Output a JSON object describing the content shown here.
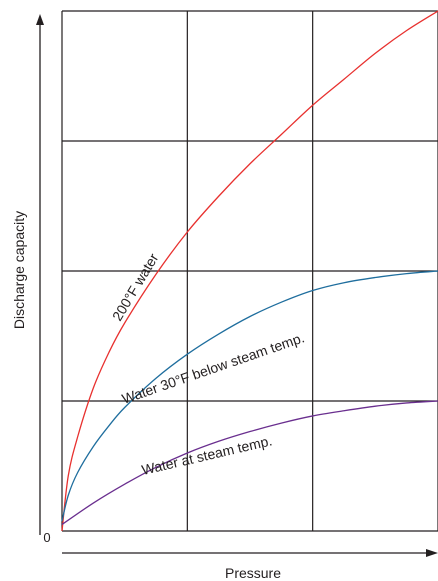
{
  "chart_data": {
    "type": "line",
    "xlabel": "Pressure",
    "ylabel": "Discharge capacity",
    "origin_label": "0",
    "xlim": [
      0,
      6
    ],
    "ylim": [
      0,
      8
    ],
    "grid": true,
    "legend": "none",
    "series": [
      {
        "name": "200°F water",
        "color": "#e8312f",
        "x": [
          0,
          0.1,
          0.25,
          0.5,
          0.75,
          1.0,
          1.5,
          2.0,
          2.5,
          3.0,
          3.5,
          4.0,
          4.5,
          5.0,
          5.5,
          6.0
        ],
        "y": [
          0,
          0.85,
          1.45,
          2.2,
          2.75,
          3.2,
          3.95,
          4.6,
          5.15,
          5.65,
          6.1,
          6.55,
          6.95,
          7.35,
          7.7,
          8.0
        ]
      },
      {
        "name": "Water 30°F below steam temp.",
        "color": "#1f6e9e",
        "x": [
          0,
          0.1,
          0.25,
          0.5,
          0.75,
          1.0,
          1.5,
          2.0,
          2.5,
          3.0,
          3.5,
          4.0,
          4.5,
          5.0,
          5.5,
          6.0
        ],
        "y": [
          0.15,
          0.55,
          0.9,
          1.3,
          1.62,
          1.9,
          2.35,
          2.72,
          3.03,
          3.3,
          3.52,
          3.7,
          3.82,
          3.9,
          3.96,
          4.0
        ]
      },
      {
        "name": "Water at steam temp.",
        "color": "#6a2f8f",
        "x": [
          0,
          0.5,
          1.0,
          1.5,
          2.0,
          2.5,
          3.0,
          3.5,
          4.0,
          4.5,
          5.0,
          5.5,
          6.0
        ],
        "y": [
          0.1,
          0.43,
          0.72,
          0.98,
          1.2,
          1.38,
          1.53,
          1.66,
          1.77,
          1.85,
          1.92,
          1.97,
          2.0
        ]
      }
    ]
  }
}
